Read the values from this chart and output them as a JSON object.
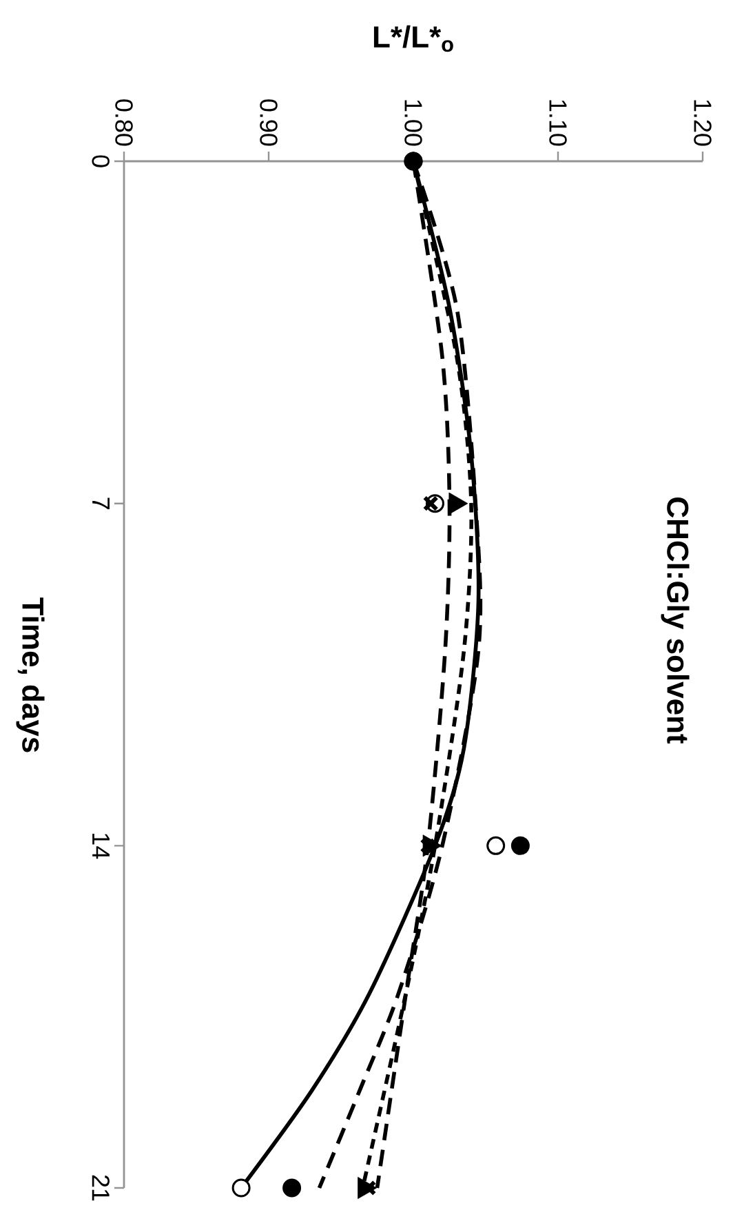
{
  "chart_data": {
    "type": "scatter",
    "title": "CHCl:Gly solvent",
    "xlabel": "L*/L*$_{o}$",
    "ylabel": "Time, days",
    "ylim": [
      21,
      0
    ],
    "yticks": [
      0,
      7,
      14,
      21
    ],
    "xlim": [
      0.8,
      1.2
    ],
    "xticks": [
      {
        "value": 0.8,
        "label": "0.80"
      },
      {
        "value": 0.9,
        "label": "0.90"
      },
      {
        "value": 1.0,
        "label": "1.00"
      },
      {
        "value": 1.1,
        "label": "1.10"
      },
      {
        "value": 1.2,
        "label": "1.20"
      }
    ],
    "grid": false,
    "legend": false,
    "series": [
      {
        "type": "scatter",
        "marker": "circle",
        "color": "#ffffff",
        "x": [
          1.0,
          1.015,
          1.057,
          0.881
        ],
        "values": [
          0,
          7,
          14,
          21
        ]
      },
      {
        "type": "scatter",
        "marker": "circle",
        "color": "#000000",
        "x": [
          1.0,
          null,
          1.074,
          0.916
        ],
        "values": [
          0,
          null,
          14,
          21
        ]
      },
      {
        "type": "scatter",
        "marker": "triangle",
        "color": "#000000",
        "x": [
          null,
          1.029,
          1.011,
          0.966
        ],
        "values": [
          null,
          7,
          14,
          21
        ]
      },
      {
        "type": "scatter",
        "marker": "cross",
        "color": "#000000",
        "x": [
          null,
          1.012,
          1.01,
          0.969
        ],
        "values": [
          null,
          7,
          14,
          21
        ]
      },
      {
        "type": "line",
        "line_style": "solid",
        "color": "#000000",
        "x": [
          1.0,
          1.025,
          1.04,
          1.045,
          1.035,
          1.015,
          0.97,
          0.93,
          0.881
        ],
        "values": [
          0,
          3,
          6,
          9,
          12,
          14,
          17,
          19,
          21
        ]
      },
      {
        "type": "line",
        "line_style": "dashed",
        "color": "#000000",
        "x": [
          1.0,
          1.03,
          1.043,
          1.045,
          1.02,
          0.99,
          0.963,
          0.935
        ],
        "values": [
          0,
          3,
          7,
          10,
          14,
          17,
          19,
          21
        ]
      },
      {
        "type": "line",
        "line_style": "dashed",
        "color": "#000000",
        "x": [
          1.0,
          1.02,
          1.025,
          1.022,
          1.01,
          0.995,
          0.975
        ],
        "values": [
          0,
          4,
          7,
          10,
          14,
          17,
          21
        ]
      },
      {
        "type": "line",
        "line_style": "dotted",
        "color": "#000000",
        "x": [
          1.0,
          1.03,
          1.04,
          1.035,
          1.015,
          0.995,
          0.965
        ],
        "values": [
          0,
          4,
          7,
          10,
          14,
          17,
          21
        ]
      }
    ]
  }
}
